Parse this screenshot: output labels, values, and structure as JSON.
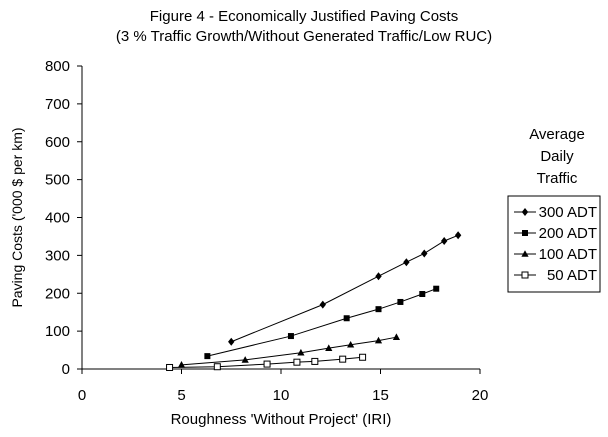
{
  "chart_data": {
    "type": "line",
    "title": "Figure 4 - Economically Justified Paving Costs",
    "subtitle": "(3 % Traffic Growth/Without Generated Traffic/Low RUC)",
    "xlabel": "Roughness 'Without Project' (IRI)",
    "ylabel": "Paving Costs ('000 $ per km)",
    "xlim": [
      0,
      20
    ],
    "ylim": [
      0,
      800
    ],
    "xticks": [
      "0",
      "5",
      "10",
      "15",
      "20"
    ],
    "yticks": [
      "0",
      "100",
      "200",
      "300",
      "400",
      "500",
      "600",
      "700",
      "800"
    ],
    "grid": false,
    "legend_title": [
      "Average",
      "Daily",
      "Traffic"
    ],
    "legend_position": "right",
    "series": [
      {
        "name": "300 ADT",
        "marker": "diamond",
        "color": "#000000",
        "x": [
          7.5,
          12.1,
          14.9,
          16.3,
          17.2,
          18.2,
          18.9
        ],
        "y": [
          72,
          170,
          245,
          282,
          305,
          338,
          353
        ]
      },
      {
        "name": "200 ADT",
        "marker": "square",
        "color": "#000000",
        "x": [
          6.3,
          10.5,
          13.3,
          14.9,
          16.0,
          17.1,
          17.8
        ],
        "y": [
          34,
          87,
          134,
          158,
          177,
          198,
          212
        ]
      },
      {
        "name": "100 ADT",
        "marker": "triangle",
        "color": "#000000",
        "x": [
          5.0,
          8.2,
          11.0,
          12.4,
          13.5,
          14.9,
          15.8
        ],
        "y": [
          11,
          24,
          43,
          55,
          64,
          75,
          84
        ]
      },
      {
        "name": "50 ADT",
        "marker": "open-square",
        "color": "#000000",
        "x": [
          4.4,
          6.8,
          9.3,
          10.8,
          11.7,
          13.1,
          14.1
        ],
        "y": [
          4,
          6,
          13,
          18,
          20,
          26,
          31
        ]
      }
    ]
  }
}
